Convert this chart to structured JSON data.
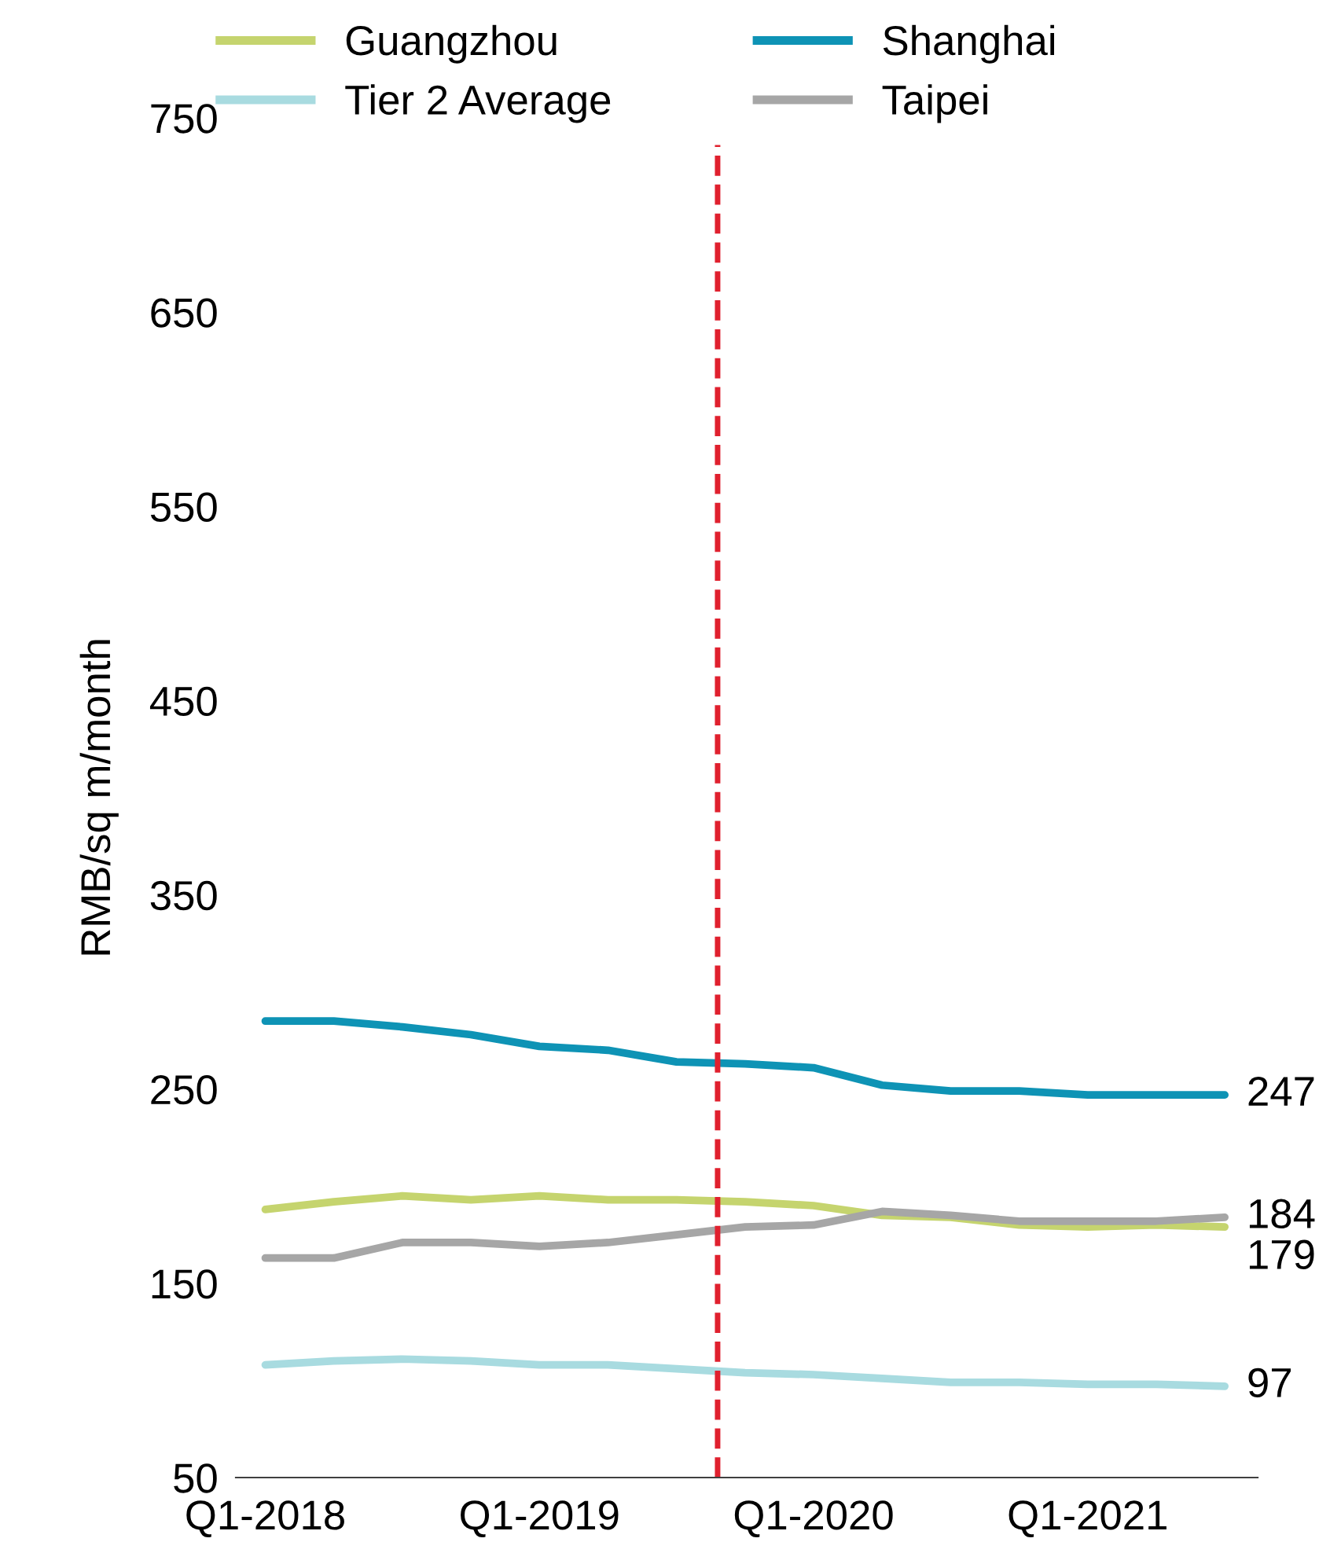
{
  "chart_data": {
    "type": "line",
    "ylabel": "RMB/sq m/month",
    "categories": [
      "Q1-2018",
      null,
      null,
      null,
      "Q1-2019",
      null,
      null,
      null,
      "Q1-2020",
      null,
      null,
      null,
      "Q1-2021",
      null,
      null
    ],
    "series": [
      {
        "name": "Guangzhou",
        "color": "#c5d46e",
        "values": [
          188,
          192,
          195,
          193,
          195,
          193,
          193,
          192,
          190,
          185,
          184,
          180,
          179,
          180,
          179
        ],
        "value_labels": [
          null,
          null,
          null,
          null,
          null,
          null,
          null,
          null,
          null,
          null,
          null,
          null,
          null,
          null,
          "179"
        ]
      },
      {
        "name": "Tier 2 Average",
        "color": "#a8dbe0",
        "values": [
          108,
          110,
          111,
          110,
          108,
          108,
          106,
          104,
          103,
          101,
          99,
          99,
          98,
          98,
          97
        ],
        "value_labels": [
          null,
          null,
          null,
          null,
          null,
          null,
          null,
          null,
          null,
          null,
          null,
          null,
          null,
          null,
          "97"
        ]
      },
      {
        "name": "Shanghai",
        "color": "#0e93b5",
        "values": [
          285,
          285,
          282,
          278,
          272,
          270,
          264,
          263,
          261,
          252,
          249,
          249,
          247,
          247,
          247
        ],
        "value_labels": [
          null,
          null,
          null,
          null,
          null,
          null,
          null,
          null,
          null,
          null,
          null,
          null,
          null,
          null,
          "247"
        ]
      },
      {
        "name": "Taipei",
        "color": "#a6a6a6",
        "values": [
          163,
          163,
          171,
          171,
          169,
          171,
          175,
          179,
          180,
          187,
          185,
          182,
          182,
          182,
          184
        ],
        "value_labels": [
          null,
          null,
          null,
          null,
          null,
          null,
          null,
          null,
          null,
          null,
          null,
          null,
          null,
          null,
          "184"
        ]
      }
    ],
    "ylim": [
      50,
      750
    ],
    "yticks": [
      50,
      150,
      250,
      350,
      450,
      550,
      650,
      750
    ],
    "legend": "top",
    "grid": false,
    "marker": "none",
    "line_style": "solid"
  }
}
